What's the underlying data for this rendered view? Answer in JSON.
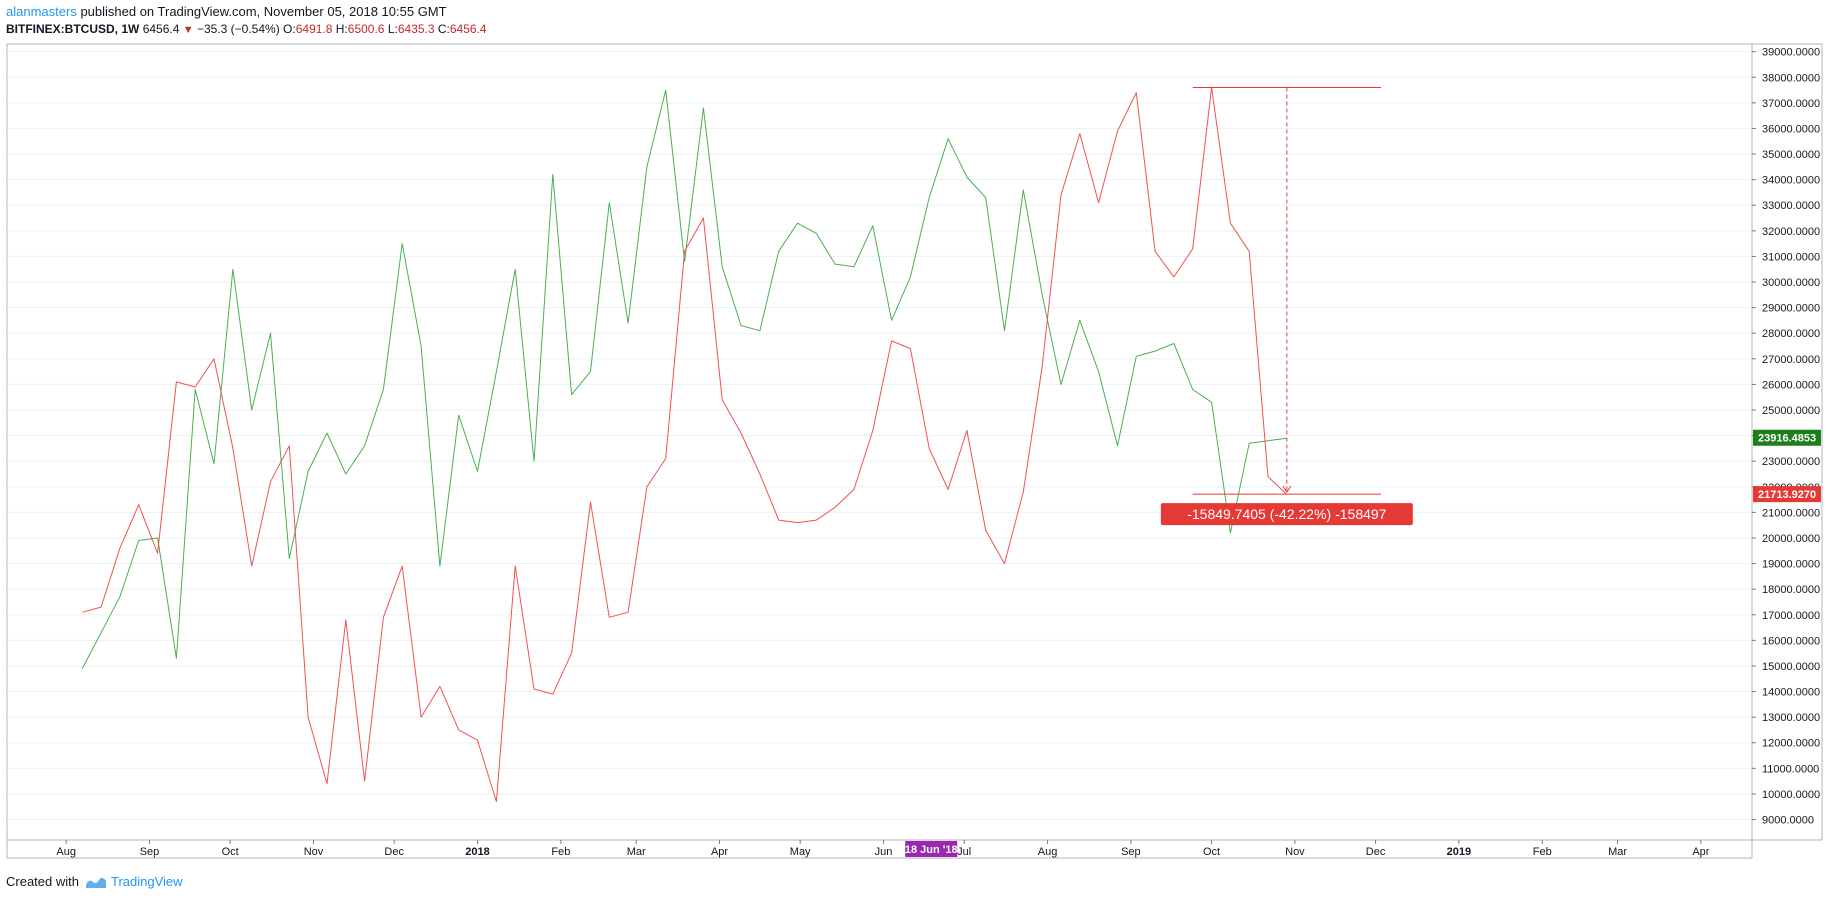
{
  "header": {
    "author": "alanmasters",
    "published_text": "published on TradingView.com, November 05, 2018 10:55 GMT",
    "symbol": "BITFINEX:BTCUSD, 1W",
    "last_price": "6456.4",
    "change": "−35.3 (−0.54%)",
    "o_label": "O:",
    "o_value": "6491.8",
    "h_label": "H:",
    "h_value": "6500.6",
    "l_label": "L:",
    "l_value": "6435.3",
    "c_label": "C:",
    "c_value": "6456.4"
  },
  "footer": {
    "created_with": "Created with",
    "brand": "TradingView"
  },
  "colors": {
    "green_series": "#4caf50",
    "red_series": "#ef5350",
    "grid": "#e8f3f2",
    "highlight_date": "#9c27b0",
    "measure_red": "#e53935",
    "green_badge": "#1b7f1b"
  },
  "chart_data": {
    "type": "line",
    "ylim": [
      8200,
      39300
    ],
    "y_ticks": [
      "9000.0000",
      "10000.0000",
      "11000.0000",
      "12000.0000",
      "13000.0000",
      "14000.0000",
      "15000.0000",
      "16000.0000",
      "17000.0000",
      "18000.0000",
      "19000.0000",
      "20000.0000",
      "21000.0000",
      "22000.0000",
      "23000.0000",
      "24000.0000",
      "25000.0000",
      "26000.0000",
      "27000.0000",
      "28000.0000",
      "29000.0000",
      "30000.0000",
      "31000.0000",
      "32000.0000",
      "33000.0000",
      "34000.0000",
      "35000.0000",
      "36000.0000",
      "37000.0000",
      "38000.0000",
      "39000.0000"
    ],
    "x_ticks": [
      {
        "label": "Aug",
        "date": "2017-08-01",
        "bold": false
      },
      {
        "label": "Sep",
        "date": "2017-09-01",
        "bold": false
      },
      {
        "label": "Oct",
        "date": "2017-10-01",
        "bold": false
      },
      {
        "label": "Nov",
        "date": "2017-11-01",
        "bold": false
      },
      {
        "label": "Dec",
        "date": "2017-12-01",
        "bold": false
      },
      {
        "label": "2018",
        "date": "2018-01-01",
        "bold": true
      },
      {
        "label": "Feb",
        "date": "2018-02-01",
        "bold": false
      },
      {
        "label": "Mar",
        "date": "2018-03-01",
        "bold": false
      },
      {
        "label": "Apr",
        "date": "2018-04-01",
        "bold": false
      },
      {
        "label": "May",
        "date": "2018-05-01",
        "bold": false
      },
      {
        "label": "Jun",
        "date": "2018-06-01",
        "bold": false
      },
      {
        "label": "Jul",
        "date": "2018-07-01",
        "bold": false
      },
      {
        "label": "Aug",
        "date": "2018-08-01",
        "bold": false
      },
      {
        "label": "Sep",
        "date": "2018-09-01",
        "bold": false
      },
      {
        "label": "Oct",
        "date": "2018-10-01",
        "bold": false
      },
      {
        "label": "Nov",
        "date": "2018-11-01",
        "bold": false
      },
      {
        "label": "Dec",
        "date": "2018-12-01",
        "bold": false
      },
      {
        "label": "2019",
        "date": "2019-01-01",
        "bold": true
      },
      {
        "label": "Feb",
        "date": "2019-02-01",
        "bold": false
      },
      {
        "label": "Mar",
        "date": "2019-03-01",
        "bold": false
      },
      {
        "label": "Apr",
        "date": "2019-04-01",
        "bold": false
      }
    ],
    "xlim": [
      "2017-07-10",
      "2019-04-20"
    ],
    "highlight_date": {
      "label": "18 Jun '18",
      "date": "2018-06-18"
    },
    "first_week": "2017-08-07",
    "series": [
      {
        "color": "#4caf50",
        "values": [
          14900,
          16300,
          17700,
          19900,
          20000,
          15300,
          25800,
          22900,
          30500,
          25000,
          28000,
          19200,
          22600,
          24100,
          22500,
          23600,
          25800,
          31500,
          27500,
          18900,
          24800,
          22600,
          26500,
          30500,
          23000,
          34200,
          25600,
          26500,
          33100,
          28400,
          34500,
          37500,
          30800,
          36800,
          30600,
          28300,
          28100,
          31200,
          32300,
          31900,
          30700,
          30600,
          32200,
          28500,
          30200,
          33300,
          35600,
          34100,
          33300,
          28100,
          33600,
          29500,
          26000,
          28500,
          26500,
          23600,
          27100,
          27300,
          27600,
          25800,
          25300,
          20200,
          23700,
          23800,
          23900
        ]
      },
      {
        "color": "#ef5350",
        "values": [
          17100,
          17300,
          19600,
          21300,
          19400,
          26100,
          25900,
          27000,
          23500,
          18900,
          22200,
          23600,
          13000,
          10400,
          16800,
          10500,
          16900,
          18900,
          13000,
          14200,
          12500,
          12100,
          9700,
          18900,
          14100,
          13900,
          15500,
          21400,
          16900,
          17100,
          22000,
          23100,
          31200,
          32500,
          25400,
          24100,
          22500,
          20700,
          20600,
          20700,
          21200,
          21900,
          24200,
          27700,
          27400,
          23500,
          21900,
          24200,
          20300,
          19000,
          21800,
          26700,
          33400,
          35800,
          33100,
          35900,
          37400,
          31200,
          30200,
          31300,
          37600,
          32300,
          31200,
          22400,
          21700
        ]
      }
    ],
    "measure": {
      "top_value": 37600,
      "bottom_value": 21713.927,
      "start_date": "2018-09-24",
      "end_date": "2018-12-03",
      "label": "-15849.7405 (-42.22%) -158497"
    },
    "price_labels": [
      {
        "value": 23916.4853,
        "text": "23916.4853",
        "color": "#1b7f1b"
      },
      {
        "value": 21713.927,
        "text": "21713.9270",
        "color": "#e53935"
      }
    ]
  }
}
